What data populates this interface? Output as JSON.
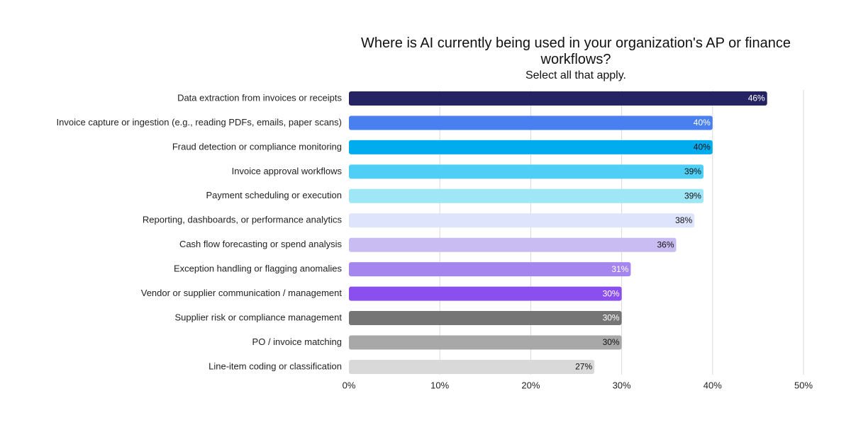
{
  "chart_data": {
    "type": "bar",
    "orientation": "horizontal",
    "title": "Where is AI currently being used in your organization's AP or finance workflows?",
    "subtitle": "Select all that apply.",
    "xlabel": "",
    "ylabel": "",
    "xlim": [
      0,
      50
    ],
    "grid": true,
    "legend": "none",
    "categories": [
      "Data extraction from invoices or receipts",
      "Invoice capture or ingestion (e.g., reading PDFs, emails, paper scans)",
      "Fraud detection or compliance monitoring",
      "Invoice approval workflows",
      "Payment scheduling or execution",
      "Reporting, dashboards, or performance analytics",
      "Cash flow forecasting or spend analysis",
      "Exception handling or flagging anomalies",
      "Vendor or supplier communication / management",
      "Supplier risk or compliance management",
      "PO / invoice matching",
      "Line-item coding or classification"
    ],
    "values": [
      46,
      40,
      40,
      39,
      39,
      38,
      36,
      31,
      30,
      30,
      30,
      27
    ],
    "data_labels": [
      "46%",
      "40%",
      "40%",
      "39%",
      "39%",
      "38%",
      "36%",
      "31%",
      "30%",
      "30%",
      "30%",
      "27%"
    ],
    "colors": [
      "#252362",
      "#4a7ff0",
      "#00acee",
      "#4fcff5",
      "#9fe6f7",
      "#dde4fc",
      "#c9bcf3",
      "#a586ef",
      "#8b4ff0",
      "#757575",
      "#a8a8a8",
      "#d9d9d9"
    ],
    "label_colors": [
      "#ffffff",
      "#ffffff",
      "#111111",
      "#111111",
      "#111111",
      "#111111",
      "#111111",
      "#ffffff",
      "#ffffff",
      "#ffffff",
      "#111111",
      "#111111"
    ],
    "x_ticks": [
      0,
      10,
      20,
      30,
      40,
      50
    ],
    "x_tick_labels": [
      "0%",
      "10%",
      "20%",
      "30%",
      "40%",
      "50%"
    ]
  }
}
